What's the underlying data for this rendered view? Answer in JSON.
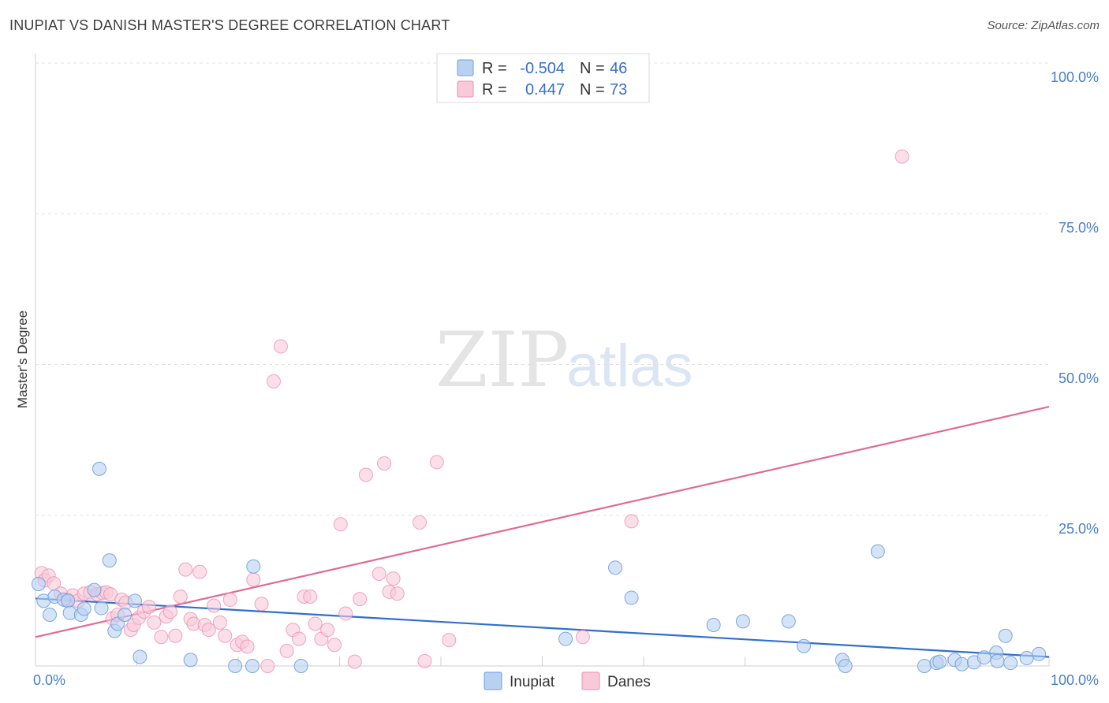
{
  "title": "INUPIAT VS DANISH MASTER'S DEGREE CORRELATION CHART",
  "source": "Source: ZipAtlas.com",
  "watermark": {
    "zip": "ZIP",
    "atlas": "atlas"
  },
  "colors": {
    "inupiat": "#6f9ee0",
    "inupiat_fill": "#b9d1f1",
    "danes": "#ef8fb0",
    "danes_fill": "#f8c9d8",
    "inupiat_line": "#2f6fcf",
    "danes_line": "#e06a96",
    "tick_text": "#4a7fc9"
  },
  "legend": {
    "rows": [
      {
        "r_label": "R =",
        "r_value": "-0.504",
        "n_label": "N =",
        "n_value": "46"
      },
      {
        "r_label": "R =",
        "r_value": "0.447",
        "n_label": "N =",
        "n_value": "73"
      }
    ]
  },
  "bottom_legend": [
    "Inupiat",
    "Danes"
  ],
  "chart_data": {
    "type": "scatter",
    "title": "INUPIAT VS DANISH MASTER'S DEGREE CORRELATION CHART",
    "xlabel": "",
    "ylabel": "Master's Degree",
    "xlim": [
      0,
      100
    ],
    "ylim": [
      0,
      100
    ],
    "x_tick_labels": [
      "0.0%",
      "100.0%"
    ],
    "y_tick_labels": [
      "100.0%",
      "75.0%",
      "50.0%",
      "25.0%"
    ],
    "y_ticks": [
      100,
      75,
      50,
      25
    ],
    "grid": true,
    "legend_position": "top-center",
    "series": [
      {
        "name": "Inupiat",
        "r": -0.504,
        "n": 46,
        "trend": [
          [
            0,
            11.2
          ],
          [
            100,
            1.5
          ]
        ],
        "points": [
          [
            0.3,
            13.6
          ],
          [
            0.8,
            10.8
          ],
          [
            1.4,
            8.5
          ],
          [
            1.9,
            11.5
          ],
          [
            2.8,
            11.0
          ],
          [
            3.2,
            10.8
          ],
          [
            3.4,
            8.8
          ],
          [
            4.5,
            8.5
          ],
          [
            4.8,
            9.5
          ],
          [
            5.8,
            12.6
          ],
          [
            6.3,
            32.7
          ],
          [
            6.5,
            9.6
          ],
          [
            7.3,
            17.5
          ],
          [
            7.8,
            5.8
          ],
          [
            8.1,
            7.0
          ],
          [
            8.8,
            8.5
          ],
          [
            9.8,
            10.8
          ],
          [
            10.3,
            1.5
          ],
          [
            15.3,
            1.0
          ],
          [
            19.7,
            0.0
          ],
          [
            21.5,
            16.5
          ],
          [
            21.4,
            0.0
          ],
          [
            26.2,
            0.0
          ],
          [
            52.3,
            4.5
          ],
          [
            57.2,
            16.3
          ],
          [
            58.8,
            11.3
          ],
          [
            66.9,
            6.8
          ],
          [
            69.8,
            7.4
          ],
          [
            74.3,
            7.4
          ],
          [
            75.8,
            3.3
          ],
          [
            79.6,
            1.0
          ],
          [
            79.9,
            0.0
          ],
          [
            83.1,
            19.0
          ],
          [
            87.7,
            0.0
          ],
          [
            88.9,
            0.5
          ],
          [
            89.2,
            0.7
          ],
          [
            90.7,
            1.0
          ],
          [
            91.4,
            0.3
          ],
          [
            92.6,
            0.6
          ],
          [
            93.6,
            1.4
          ],
          [
            94.8,
            2.2
          ],
          [
            94.9,
            0.8
          ],
          [
            95.7,
            5.0
          ],
          [
            96.2,
            0.5
          ],
          [
            97.8,
            1.3
          ],
          [
            99.0,
            2.0
          ]
        ]
      },
      {
        "name": "Danes",
        "r": 0.447,
        "n": 73,
        "trend": [
          [
            0,
            4.8
          ],
          [
            100,
            43.0
          ]
        ],
        "points": [
          [
            0.6,
            15.4
          ],
          [
            0.9,
            14.2
          ],
          [
            1.3,
            15.0
          ],
          [
            1.8,
            13.7
          ],
          [
            2.5,
            12.0
          ],
          [
            3.2,
            11.0
          ],
          [
            3.7,
            11.7
          ],
          [
            4.2,
            10.8
          ],
          [
            4.8,
            12.0
          ],
          [
            5.4,
            12.2
          ],
          [
            6.1,
            11.9
          ],
          [
            6.6,
            12.1
          ],
          [
            7.0,
            12.2
          ],
          [
            7.4,
            11.9
          ],
          [
            7.6,
            7.9
          ],
          [
            8.1,
            8.5
          ],
          [
            8.5,
            11.0
          ],
          [
            8.9,
            10.5
          ],
          [
            9.4,
            6.0
          ],
          [
            9.7,
            6.8
          ],
          [
            10.2,
            8.0
          ],
          [
            10.7,
            9.0
          ],
          [
            11.2,
            9.8
          ],
          [
            11.7,
            7.2
          ],
          [
            12.4,
            4.8
          ],
          [
            12.9,
            8.2
          ],
          [
            13.3,
            9.0
          ],
          [
            13.8,
            5.0
          ],
          [
            14.3,
            11.5
          ],
          [
            14.8,
            16.0
          ],
          [
            15.3,
            7.8
          ],
          [
            15.6,
            7.0
          ],
          [
            16.2,
            15.6
          ],
          [
            16.7,
            6.8
          ],
          [
            17.1,
            6.0
          ],
          [
            17.6,
            10.0
          ],
          [
            18.2,
            7.2
          ],
          [
            18.7,
            5.0
          ],
          [
            19.2,
            11.0
          ],
          [
            19.9,
            3.5
          ],
          [
            20.4,
            4.0
          ],
          [
            20.9,
            3.2
          ],
          [
            21.5,
            14.3
          ],
          [
            22.3,
            10.3
          ],
          [
            22.9,
            0.0
          ],
          [
            23.5,
            47.2
          ],
          [
            24.2,
            53.0
          ],
          [
            24.8,
            2.5
          ],
          [
            25.4,
            6.0
          ],
          [
            26.0,
            4.5
          ],
          [
            26.5,
            11.5
          ],
          [
            27.1,
            11.5
          ],
          [
            27.6,
            7.0
          ],
          [
            28.2,
            4.5
          ],
          [
            28.8,
            6.0
          ],
          [
            29.5,
            3.5
          ],
          [
            30.1,
            23.5
          ],
          [
            30.6,
            8.7
          ],
          [
            31.5,
            0.7
          ],
          [
            32.0,
            11.1
          ],
          [
            32.6,
            31.7
          ],
          [
            33.9,
            15.3
          ],
          [
            34.4,
            33.6
          ],
          [
            34.9,
            12.3
          ],
          [
            35.3,
            14.5
          ],
          [
            35.7,
            12.0
          ],
          [
            37.9,
            23.8
          ],
          [
            38.4,
            0.8
          ],
          [
            39.6,
            33.8
          ],
          [
            40.8,
            4.3
          ],
          [
            54.0,
            4.8
          ],
          [
            58.8,
            24.0
          ],
          [
            85.5,
            84.5
          ]
        ]
      }
    ]
  }
}
